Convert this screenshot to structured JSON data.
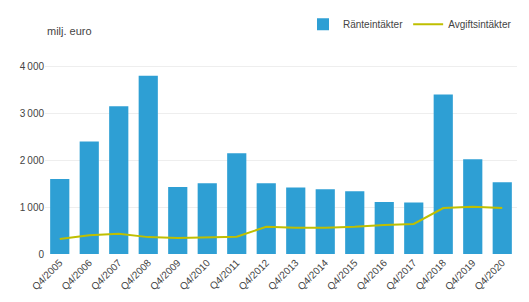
{
  "chart_data": {
    "type": "bar",
    "ylabel": "milj. euro",
    "categories": [
      "Q4/2005",
      "Q4/2006",
      "Q4/2007",
      "Q4/2008",
      "Q4/2009",
      "Q4/2010",
      "Q4/2011",
      "Q4/2012",
      "Q4/2013",
      "Q4/2014",
      "Q4/2015",
      "Q4/2016",
      "Q4/2017",
      "Q4/2018",
      "Q4/2019",
      "Q4/2020"
    ],
    "series": [
      {
        "name": "Ränteintäkter",
        "type": "bar",
        "color": "#2E9FD4",
        "values": [
          1600,
          2400,
          3150,
          3800,
          1430,
          1510,
          2150,
          1510,
          1420,
          1380,
          1340,
          1110,
          1100,
          3400,
          2020,
          1530
        ]
      },
      {
        "name": "Avgiftsintäkter",
        "type": "line",
        "color": "#BFBF00",
        "values": [
          320,
          400,
          430,
          360,
          340,
          350,
          370,
          580,
          560,
          560,
          580,
          620,
          640,
          980,
          1010,
          980
        ]
      }
    ],
    "ylim": [
      0,
      4500
    ],
    "yticks": [
      0,
      {
        "value": 1000,
        "label": "1 000"
      },
      {
        "value": 2000,
        "label": "2 000"
      },
      {
        "value": 3000,
        "label": "3 000"
      },
      {
        "value": 4000,
        "label": "4 000"
      }
    ],
    "grid": true,
    "legend": "upper right"
  }
}
